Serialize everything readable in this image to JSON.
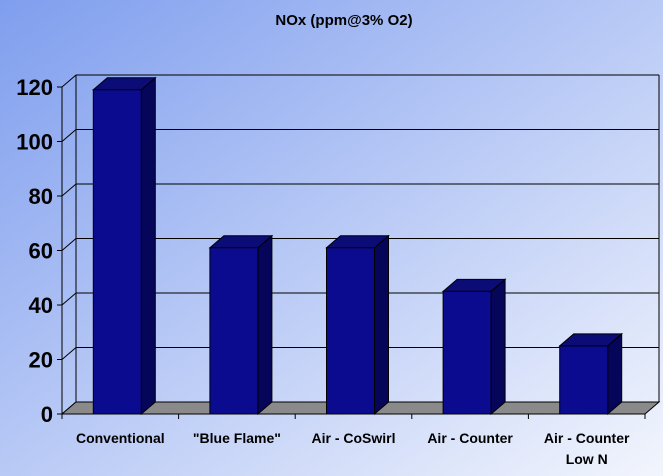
{
  "chart_data": {
    "type": "bar",
    "title": "NOx (ppm@3% O2)",
    "categories": [
      "Conventional",
      "\"Blue Flame\"",
      "Air - CoSwirl",
      "Air - Counter",
      "Air - Counter\nLow N"
    ],
    "values": [
      119,
      61,
      61,
      45,
      25
    ],
    "xlabel": "",
    "ylabel": "",
    "ylim": [
      0,
      120
    ],
    "yticks": [
      0,
      20,
      40,
      60,
      80,
      100,
      120
    ],
    "grid": true,
    "legend": "none",
    "three_d": true
  },
  "colors": {
    "background_start": "#7f9eee",
    "background_end": "#f2f5fd",
    "bar_front": "#0a0b8f",
    "bar_side": "#05055a",
    "bar_top": "#0b0c76",
    "floor": "#8a8a8a",
    "gridline": "#000000"
  }
}
